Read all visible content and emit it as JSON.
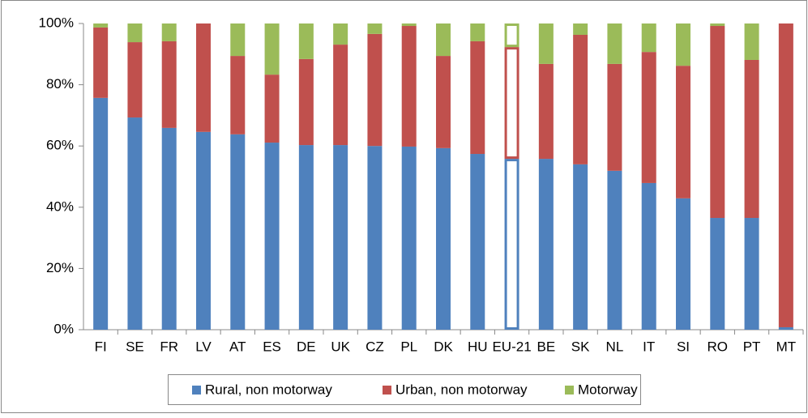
{
  "chart_data": {
    "type": "stacked_bar_percent",
    "categories": [
      "FI",
      "SE",
      "FR",
      "LV",
      "AT",
      "ES",
      "DE",
      "UK",
      "CZ",
      "PL",
      "DK",
      "HU",
      "EU-21",
      "BE",
      "SK",
      "NL",
      "IT",
      "SI",
      "RO",
      "PT",
      "MT"
    ],
    "series": [
      {
        "name": "Rural, non motorway",
        "color": "#4f81bd",
        "values": [
          75.7,
          69.3,
          65.9,
          64.6,
          63.8,
          61.1,
          60.3,
          60.3,
          60,
          59.8,
          59.3,
          57.4,
          55.8,
          55.8,
          54,
          51.9,
          47.9,
          42.9,
          36.5,
          36.5,
          0.8
        ]
      },
      {
        "name": "Urban, non motorway",
        "color": "#c0504d",
        "values": [
          23,
          24.6,
          28.3,
          35.4,
          25.6,
          22.2,
          28.1,
          32.8,
          36.6,
          39.4,
          30.1,
          36.8,
          36.5,
          31,
          42.3,
          34.9,
          42.8,
          43.3,
          62.7,
          51.6,
          99.2
        ]
      },
      {
        "name": "Motorway",
        "color": "#9bbb59",
        "values": [
          1.3,
          6.1,
          5.8,
          0,
          10.6,
          16.7,
          11.6,
          6.9,
          3.4,
          0.8,
          10.6,
          5.8,
          7.7,
          13.2,
          3.7,
          13.2,
          9.3,
          13.8,
          0.8,
          11.9,
          0
        ]
      }
    ],
    "highlight_category": "EU-21",
    "ylim": [
      0,
      100
    ],
    "yticks": [
      {
        "value": 0,
        "label": "0%"
      },
      {
        "value": 20,
        "label": "20%"
      },
      {
        "value": 40,
        "label": "40%"
      },
      {
        "value": 60,
        "label": "60%"
      },
      {
        "value": 80,
        "label": "80%"
      },
      {
        "value": 100,
        "label": "100%"
      }
    ],
    "legend": "bottom"
  }
}
